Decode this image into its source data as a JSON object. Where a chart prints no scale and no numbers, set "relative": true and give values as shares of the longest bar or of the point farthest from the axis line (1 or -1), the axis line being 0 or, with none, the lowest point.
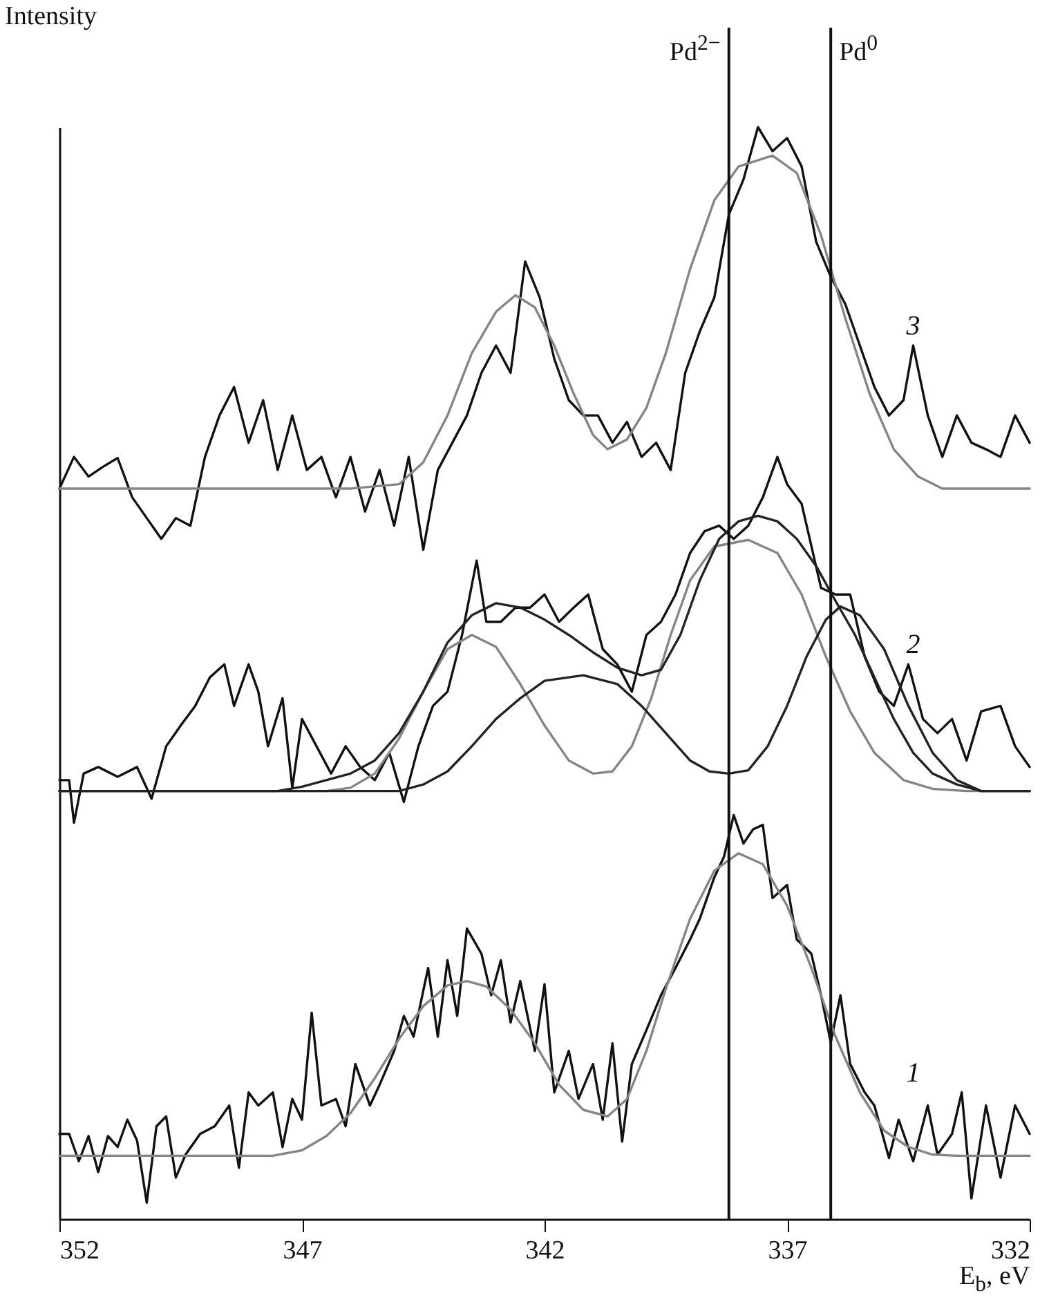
{
  "chart_data": {
    "type": "line",
    "xlabel": "E$_{b}$, eV",
    "ylabel": "Intensity",
    "relative": true,
    "xlim": [
      352,
      332
    ],
    "xticks": [
      352,
      347,
      342,
      337,
      332
    ],
    "series": [
      {
        "name": "3",
        "color": "#111111",
        "x": [
          352,
          351.7,
          351.4,
          351.1,
          350.8,
          350.5,
          350.2,
          349.9,
          349.6,
          349.3,
          349.0,
          348.7,
          348.4,
          348.1,
          347.8,
          347.5,
          347.2,
          346.9,
          346.6,
          346.3,
          346.0,
          345.7,
          345.4,
          345.1,
          344.8,
          344.5,
          344.2,
          343.9,
          343.6,
          343.3,
          343.0,
          342.7,
          342.4,
          342.1,
          341.8,
          341.5,
          341.2,
          340.9,
          340.6,
          340.3,
          340.0,
          339.7,
          339.4,
          339.1,
          338.8,
          338.5,
          338.2,
          337.9,
          337.6,
          337.3,
          337.0,
          336.7,
          336.4,
          336.1,
          335.8,
          335.5,
          335.2,
          334.9,
          334.6,
          334.4,
          334.1,
          333.8,
          333.5,
          333.2,
          332.9,
          332.6,
          332.3,
          332.0
        ],
        "values": [
          0.669,
          0.698,
          0.68,
          0.689,
          0.697,
          0.661,
          0.642,
          0.623,
          0.642,
          0.635,
          0.698,
          0.736,
          0.762,
          0.711,
          0.75,
          0.686,
          0.736,
          0.686,
          0.698,
          0.661,
          0.698,
          0.648,
          0.686,
          0.635,
          0.698,
          0.613,
          0.686,
          0.711,
          0.736,
          0.775,
          0.8,
          0.775,
          0.877,
          0.844,
          0.788,
          0.75,
          0.736,
          0.736,
          0.711,
          0.73,
          0.698,
          0.711,
          0.686,
          0.775,
          0.813,
          0.844,
          0.92,
          0.952,
          1.0,
          0.978,
          0.99,
          0.964,
          0.895,
          0.863,
          0.838,
          0.8,
          0.762,
          0.736,
          0.75,
          0.8,
          0.736,
          0.698,
          0.736,
          0.711,
          0.705,
          0.698,
          0.736,
          0.711
        ]
      },
      {
        "color": "#858585",
        "x": [
          352,
          346,
          345,
          344.5,
          344,
          343.5,
          343,
          342.6,
          342.2,
          341.8,
          341.4,
          341.0,
          340.7,
          340.3,
          339.9,
          339.5,
          339.0,
          338.5,
          338.0,
          337.3,
          336.8,
          336.3,
          335.8,
          335.3,
          334.8,
          334.3,
          333.8,
          332
        ],
        "values": [
          0.669,
          0.669,
          0.673,
          0.693,
          0.736,
          0.793,
          0.831,
          0.846,
          0.835,
          0.8,
          0.756,
          0.718,
          0.705,
          0.714,
          0.743,
          0.793,
          0.87,
          0.933,
          0.964,
          0.974,
          0.958,
          0.901,
          0.825,
          0.756,
          0.705,
          0.68,
          0.669,
          0.669
        ]
      },
      {
        "name": "2",
        "color": "#111111",
        "x": [
          352,
          351.8,
          351.7,
          351.5,
          351.2,
          350.8,
          350.4,
          350.1,
          349.8,
          349.5,
          349.2,
          348.9,
          348.6,
          348.4,
          348.1,
          347.9,
          347.7,
          347.4,
          347.2,
          347.0,
          346.7,
          346.4,
          346.1,
          345.8,
          345.5,
          345.2,
          344.9,
          344.6,
          344.3,
          344.0,
          343.7,
          343.4,
          343.2,
          342.9,
          342.6,
          342.3,
          342.0,
          341.7,
          341.4,
          341.1,
          340.8,
          340.5,
          340.2,
          339.9,
          339.6,
          339.3,
          339.0,
          338.7,
          338.4,
          338.1,
          337.8,
          337.5,
          337.2,
          337.0,
          336.7,
          336.3,
          336.0,
          335.7,
          335.4,
          335.1,
          334.8,
          334.5,
          334.2,
          333.9,
          333.6,
          333.3,
          333.0,
          332.6,
          332.3,
          332.0
        ],
        "values": [
          0.402,
          0.402,
          0.363,
          0.408,
          0.414,
          0.405,
          0.414,
          0.385,
          0.433,
          0.452,
          0.47,
          0.496,
          0.508,
          0.47,
          0.508,
          0.483,
          0.433,
          0.477,
          0.395,
          0.458,
          0.433,
          0.408,
          0.433,
          0.414,
          0.402,
          0.427,
          0.382,
          0.433,
          0.47,
          0.483,
          0.535,
          0.603,
          0.547,
          0.547,
          0.56,
          0.56,
          0.572,
          0.547,
          0.56,
          0.572,
          0.522,
          0.508,
          0.483,
          0.535,
          0.547,
          0.572,
          0.61,
          0.63,
          0.635,
          0.623,
          0.635,
          0.661,
          0.698,
          0.673,
          0.655,
          0.578,
          0.572,
          0.572,
          0.515,
          0.483,
          0.47,
          0.508,
          0.458,
          0.445,
          0.458,
          0.42,
          0.465,
          0.47,
          0.433,
          0.414
        ]
      },
      {
        "color": "#858585",
        "x": [
          352,
          346.5,
          346,
          345.5,
          345,
          344.5,
          344,
          343.5,
          343,
          342.5,
          342,
          341.5,
          341,
          340.6,
          340.2,
          339.8,
          339.4,
          339,
          338.5,
          337.8,
          337.2,
          336.7,
          336.2,
          335.7,
          335.2,
          334.6,
          334,
          333.3,
          332
        ],
        "values": [
          0.392,
          0.392,
          0.395,
          0.408,
          0.44,
          0.483,
          0.522,
          0.535,
          0.524,
          0.49,
          0.452,
          0.42,
          0.408,
          0.41,
          0.433,
          0.477,
          0.535,
          0.585,
          0.616,
          0.622,
          0.61,
          0.572,
          0.515,
          0.465,
          0.427,
          0.402,
          0.394,
          0.392,
          0.392
        ]
      },
      {
        "color": "#222222",
        "x": [
          352,
          345,
          344.5,
          344,
          343.5,
          343,
          342.5,
          342,
          341.2,
          340.5,
          340,
          339.5,
          339,
          338.6,
          338.2,
          337.8,
          337.4,
          337,
          336.6,
          336.2,
          335.9,
          335.5,
          335,
          334.5,
          334,
          333.5,
          333,
          332
        ],
        "values": [
          0.392,
          0.392,
          0.398,
          0.41,
          0.433,
          0.458,
          0.477,
          0.493,
          0.498,
          0.49,
          0.47,
          0.445,
          0.42,
          0.41,
          0.408,
          0.411,
          0.433,
          0.47,
          0.515,
          0.549,
          0.561,
          0.553,
          0.522,
          0.47,
          0.427,
          0.402,
          0.392,
          0.392
        ]
      },
      {
        "color": "#222222",
        "x": [
          352,
          347.5,
          347,
          346.5,
          346,
          345.5,
          345,
          344.5,
          344,
          343.5,
          343,
          342.5,
          342,
          341.5,
          341,
          340.5,
          340,
          339.6,
          339.2,
          338.8,
          338.4,
          338,
          337.6,
          337.2,
          336.8,
          336.4,
          336,
          335.6,
          335.2,
          334.8,
          334.4,
          334,
          333.5,
          333,
          332
        ],
        "values": [
          0.392,
          0.392,
          0.396,
          0.402,
          0.408,
          0.42,
          0.445,
          0.483,
          0.528,
          0.553,
          0.564,
          0.56,
          0.549,
          0.535,
          0.519,
          0.505,
          0.498,
          0.503,
          0.535,
          0.585,
          0.623,
          0.639,
          0.644,
          0.639,
          0.623,
          0.598,
          0.566,
          0.535,
          0.496,
          0.458,
          0.427,
          0.408,
          0.398,
          0.392,
          0.392
        ]
      },
      {
        "name": "1",
        "color": "#111111",
        "x": [
          352,
          351.8,
          351.6,
          351.4,
          351.2,
          351.0,
          350.8,
          350.6,
          350.4,
          350.2,
          350.0,
          349.8,
          349.6,
          349.4,
          349.1,
          348.8,
          348.5,
          348.3,
          348.1,
          347.9,
          347.6,
          347.4,
          347.2,
          347.0,
          346.8,
          346.6,
          346.3,
          346.1,
          345.9,
          345.6,
          345.4,
          345.1,
          344.9,
          344.7,
          344.4,
          344.2,
          344.0,
          343.8,
          343.6,
          343.3,
          343.1,
          342.9,
          342.7,
          342.5,
          342.2,
          342.0,
          341.8,
          341.5,
          341.3,
          341.0,
          340.8,
          340.6,
          340.4,
          340.2,
          339.9,
          339.6,
          339.3,
          339.0,
          338.8,
          338.5,
          338.3,
          338.1,
          337.9,
          337.7,
          337.5,
          337.3,
          337.0,
          336.8,
          336.5,
          336.3,
          336.1,
          335.9,
          335.7,
          335.4,
          335.2,
          334.9,
          334.7,
          334.4,
          334.1,
          333.9,
          333.6,
          333.4,
          333.2,
          332.9,
          332.6,
          332.3,
          332.0
        ],
        "values": [
          0.078,
          0.078,
          0.053,
          0.076,
          0.043,
          0.076,
          0.066,
          0.091,
          0.072,
          0.015,
          0.085,
          0.094,
          0.038,
          0.059,
          0.078,
          0.085,
          0.104,
          0.047,
          0.116,
          0.104,
          0.116,
          0.066,
          0.11,
          0.091,
          0.189,
          0.104,
          0.11,
          0.085,
          0.142,
          0.104,
          0.123,
          0.154,
          0.186,
          0.167,
          0.23,
          0.167,
          0.237,
          0.186,
          0.266,
          0.243,
          0.205,
          0.237,
          0.18,
          0.218,
          0.154,
          0.215,
          0.116,
          0.154,
          0.11,
          0.142,
          0.091,
          0.161,
          0.071,
          0.142,
          0.173,
          0.205,
          0.23,
          0.256,
          0.275,
          0.313,
          0.332,
          0.37,
          0.344,
          0.357,
          0.361,
          0.294,
          0.306,
          0.256,
          0.243,
          0.205,
          0.162,
          0.205,
          0.142,
          0.116,
          0.104,
          0.056,
          0.091,
          0.053,
          0.104,
          0.059,
          0.078,
          0.116,
          0.019,
          0.104,
          0.038,
          0.104,
          0.078
        ]
      },
      {
        "color": "#858585",
        "x": [
          352,
          347.6,
          347,
          346.5,
          346,
          345.5,
          345,
          344.5,
          344,
          343.6,
          343.2,
          342.7,
          342.2,
          341.7,
          341.2,
          340.7,
          340.3,
          339.9,
          339.5,
          339,
          338.5,
          338,
          337.5,
          337,
          336.5,
          336,
          335.5,
          335,
          334.5,
          334,
          333.5,
          332
        ],
        "values": [
          0.058,
          0.058,
          0.063,
          0.076,
          0.097,
          0.129,
          0.165,
          0.195,
          0.214,
          0.218,
          0.213,
          0.192,
          0.161,
          0.123,
          0.1,
          0.094,
          0.11,
          0.154,
          0.211,
          0.275,
          0.319,
          0.335,
          0.325,
          0.287,
          0.23,
          0.167,
          0.116,
          0.081,
          0.066,
          0.059,
          0.058,
          0.058
        ]
      }
    ],
    "ref_lines": [
      {
        "axis": "x",
        "value": 338.2,
        "label": "Pd$^{2−}$",
        "color": "#111111"
      },
      {
        "axis": "x",
        "value": 336.1,
        "label": "Pd$^{0}$",
        "color": "#111111"
      }
    ]
  }
}
